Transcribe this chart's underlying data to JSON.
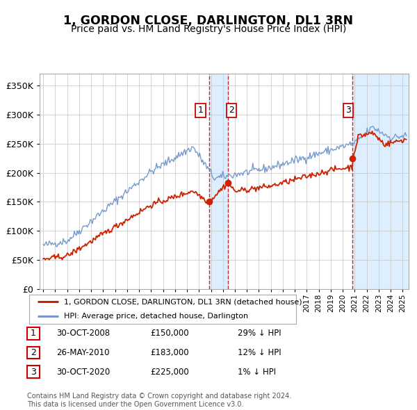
{
  "title": "1, GORDON CLOSE, DARLINGTON, DL1 3RN",
  "subtitle": "Price paid vs. HM Land Registry's House Price Index (HPI)",
  "background_color": "#ffffff",
  "plot_bg_color": "#ffffff",
  "grid_color": "#cccccc",
  "hpi_line_color": "#7799cc",
  "price_line_color": "#cc2200",
  "dot_color": "#cc2200",
  "shading_color": "#ddeeff",
  "t1_x": 2008.83,
  "t2_x": 2010.4,
  "t3_x": 2020.83,
  "t1_price": 150000,
  "t2_price": 183000,
  "t3_price": 225000,
  "legend_entries": [
    "1, GORDON CLOSE, DARLINGTON, DL1 3RN (detached house)",
    "HPI: Average price, detached house, Darlington"
  ],
  "table_rows": [
    {
      "num": "1",
      "date": "30-OCT-2008",
      "price": "£150,000",
      "hpi_diff": "29% ↓ HPI"
    },
    {
      "num": "2",
      "date": "26-MAY-2010",
      "price": "£183,000",
      "hpi_diff": "12% ↓ HPI"
    },
    {
      "num": "3",
      "date": "30-OCT-2020",
      "price": "£225,000",
      "hpi_diff": "1% ↓ HPI"
    }
  ],
  "footer": "Contains HM Land Registry data © Crown copyright and database right 2024.\nThis data is licensed under the Open Government Licence v3.0.",
  "ylim": [
    0,
    370000
  ],
  "yticks": [
    0,
    50000,
    100000,
    150000,
    200000,
    250000,
    300000,
    350000
  ],
  "xlim_start": 1994.7,
  "xlim_end": 2025.5
}
